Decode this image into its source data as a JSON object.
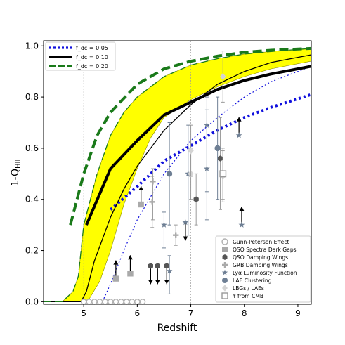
{
  "chart_data": {
    "type": "line",
    "xlabel": "Redshift",
    "ylabel": "1-Q_HII",
    "xlim": [
      4.25,
      9.25
    ],
    "ylim": [
      -0.01,
      1.02
    ],
    "xticks": [
      5,
      6,
      7,
      8,
      9
    ],
    "yticks": [
      0.0,
      0.2,
      0.4,
      0.6,
      0.8,
      1.0
    ],
    "xtick_labels": [
      "5",
      "6",
      "7",
      "8",
      "9"
    ],
    "ytick_labels": [
      "0.0",
      "0.2",
      "0.4",
      "0.6",
      "0.8",
      "1.0"
    ],
    "vlines": [
      5,
      7
    ],
    "grid": false,
    "legend_main": {
      "placement": "top-left",
      "entries": [
        {
          "key": "f005",
          "label": "f_dc = 0.05",
          "color": "#1010dd",
          "style": "dotted"
        },
        {
          "key": "f010",
          "label": "f_dc = 0.10",
          "color": "#000000",
          "style": "solid"
        },
        {
          "key": "f020",
          "label": "f_dc = 0.20",
          "color": "#1a7a1a",
          "style": "dashed"
        }
      ]
    },
    "band": {
      "color": "#ffff00",
      "edge_color": "#8a8a00",
      "upper": [
        [
          4.25,
          0
        ],
        [
          4.6,
          0
        ],
        [
          4.8,
          0.04
        ],
        [
          4.9,
          0.1
        ],
        [
          5,
          0.3
        ],
        [
          5.25,
          0.5
        ],
        [
          5.5,
          0.65
        ],
        [
          5.75,
          0.74
        ],
        [
          6,
          0.8
        ],
        [
          6.5,
          0.88
        ],
        [
          7,
          0.925
        ],
        [
          7.5,
          0.95
        ],
        [
          8,
          0.968
        ],
        [
          8.5,
          0.978
        ],
        [
          9.25,
          0.99
        ]
      ],
      "lower": [
        [
          9.25,
          0.94
        ],
        [
          8.5,
          0.91
        ],
        [
          8,
          0.88
        ],
        [
          7.5,
          0.84
        ],
        [
          7,
          0.79
        ],
        [
          6.5,
          0.72
        ],
        [
          6.25,
          0.64
        ],
        [
          6,
          0.52
        ],
        [
          5.75,
          0.38
        ],
        [
          5.5,
          0.2
        ],
        [
          5.3,
          0.08
        ],
        [
          5.1,
          0.01
        ],
        [
          5,
          0
        ],
        [
          4.25,
          0
        ]
      ]
    },
    "series": [
      {
        "key": "f005",
        "color": "#1010dd",
        "style": "dotted",
        "width": 4,
        "points": [
          [
            5.5,
            0.36
          ],
          [
            6,
            0.45
          ],
          [
            6.5,
            0.55
          ],
          [
            7,
            0.61
          ],
          [
            7.5,
            0.67
          ],
          [
            8,
            0.72
          ],
          [
            8.5,
            0.76
          ],
          [
            9.25,
            0.81
          ]
        ]
      },
      {
        "key": "f005_thin",
        "color": "#1010dd",
        "style": "dotted",
        "width": 1.2,
        "points": [
          [
            5.35,
            0
          ],
          [
            5.5,
            0.07
          ],
          [
            5.75,
            0.2
          ],
          [
            6,
            0.32
          ],
          [
            6.5,
            0.5
          ],
          [
            7,
            0.63
          ],
          [
            7.5,
            0.72
          ],
          [
            8,
            0.8
          ],
          [
            8.5,
            0.86
          ],
          [
            9.25,
            0.92
          ]
        ]
      },
      {
        "key": "f010",
        "color": "#000000",
        "style": "solid",
        "width": 4,
        "points": [
          [
            5.05,
            0.3
          ],
          [
            5.5,
            0.52
          ],
          [
            6,
            0.63
          ],
          [
            6.5,
            0.73
          ],
          [
            7,
            0.78
          ],
          [
            7.5,
            0.83
          ],
          [
            8,
            0.865
          ],
          [
            8.5,
            0.89
          ],
          [
            9.25,
            0.92
          ]
        ]
      },
      {
        "key": "f010_thin",
        "color": "#000000",
        "style": "solid",
        "width": 1.3,
        "points": [
          [
            4.25,
            0
          ],
          [
            4.95,
            0
          ],
          [
            5.05,
            0.04
          ],
          [
            5.2,
            0.16
          ],
          [
            5.5,
            0.33
          ],
          [
            5.75,
            0.44
          ],
          [
            6,
            0.53
          ],
          [
            6.5,
            0.67
          ],
          [
            7,
            0.77
          ],
          [
            7.5,
            0.85
          ],
          [
            8,
            0.9
          ],
          [
            8.5,
            0.935
          ],
          [
            9.25,
            0.965
          ]
        ]
      },
      {
        "key": "f020",
        "color": "#1a7a1a",
        "style": "dashed",
        "width": 4,
        "points": [
          [
            4.75,
            0.3
          ],
          [
            5,
            0.5
          ],
          [
            5.25,
            0.65
          ],
          [
            5.5,
            0.74
          ],
          [
            6,
            0.85
          ],
          [
            6.5,
            0.91
          ],
          [
            7,
            0.94
          ],
          [
            7.5,
            0.96
          ],
          [
            8,
            0.975
          ],
          [
            8.5,
            0.983
          ],
          [
            9.25,
            0.99
          ]
        ]
      },
      {
        "key": "f020_thin",
        "color": "#1a7a1a",
        "style": "dashed",
        "width": 1.3,
        "points": [
          [
            4.25,
            0
          ],
          [
            4.6,
            0
          ],
          [
            4.8,
            0.04
          ],
          [
            4.9,
            0.1
          ],
          [
            5,
            0.3
          ],
          [
            5.25,
            0.5
          ],
          [
            5.5,
            0.65
          ],
          [
            5.75,
            0.74
          ],
          [
            6,
            0.8
          ],
          [
            6.5,
            0.88
          ],
          [
            7,
            0.925
          ],
          [
            7.5,
            0.95
          ],
          [
            8,
            0.968
          ],
          [
            8.5,
            0.978
          ],
          [
            9.25,
            0.99
          ]
        ]
      }
    ],
    "legend_obs": {
      "placement": "bottom-right",
      "entries": [
        {
          "key": "gp",
          "label": "Gunn-Peterson Effect",
          "marker": "circle-open",
          "color": "#aaaaaa"
        },
        {
          "key": "qdg",
          "label": "QSO Spectra Dark Gaps",
          "marker": "square",
          "color": "#aaaaaa"
        },
        {
          "key": "qdw",
          "label": "QSO Damping Wings",
          "marker": "hexagon",
          "color": "#555555"
        },
        {
          "key": "grb",
          "label": "GRB Damping Wings",
          "marker": "plus",
          "color": "#aaaaaa"
        },
        {
          "key": "lya",
          "label": "Lyα Luminosity Function",
          "marker": "star",
          "color": "#6e7f94"
        },
        {
          "key": "lae",
          "label": "LAE Clustering",
          "marker": "circle",
          "color": "#6e7f94"
        },
        {
          "key": "lbg",
          "label": "LBGs / LAEs",
          "marker": "diamond",
          "color": "#d4d4d4"
        },
        {
          "key": "cmb",
          "label": "τ from CMB",
          "marker": "square-open",
          "color": "#999999"
        }
      ]
    },
    "observations": [
      {
        "type": "circle-open",
        "x": 5.0,
        "y": 0.0
      },
      {
        "type": "circle-open",
        "x": 5.1,
        "y": 0.0
      },
      {
        "type": "circle-open",
        "x": 5.2,
        "y": 0.0
      },
      {
        "type": "circle-open",
        "x": 5.3,
        "y": 0.0
      },
      {
        "type": "circle-open",
        "x": 5.4,
        "y": 0.0
      },
      {
        "type": "circle-open",
        "x": 5.5,
        "y": 0.0
      },
      {
        "type": "circle-open",
        "x": 5.6,
        "y": 0.0
      },
      {
        "type": "circle-open",
        "x": 5.7,
        "y": 0.0
      },
      {
        "type": "circle-open",
        "x": 5.8,
        "y": 0.0
      },
      {
        "type": "circle-open",
        "x": 5.9,
        "y": 0.0
      },
      {
        "type": "circle-open",
        "x": 6.0,
        "y": 0.0
      },
      {
        "type": "circle-open",
        "x": 6.1,
        "y": 0.0
      },
      {
        "type": "square",
        "x": 5.6,
        "y": 0.09,
        "limit": "up"
      },
      {
        "type": "square",
        "x": 5.87,
        "y": 0.11,
        "limit": "up"
      },
      {
        "type": "square",
        "x": 6.07,
        "y": 0.38,
        "limit": "up"
      },
      {
        "type": "hexagon",
        "x": 6.25,
        "y": 0.14,
        "limit": "down"
      },
      {
        "type": "hexagon",
        "x": 6.38,
        "y": 0.14,
        "limit": "down"
      },
      {
        "type": "hexagon",
        "x": 6.55,
        "y": 0.14,
        "limit": "down"
      },
      {
        "type": "hexagon",
        "x": 7.1,
        "y": 0.4,
        "yerr": [
          0.1,
          0.1
        ]
      },
      {
        "type": "hexagon",
        "x": 7.55,
        "y": 0.56,
        "yerr": [
          0.2,
          0.16
        ]
      },
      {
        "type": "plus",
        "x": 6.29,
        "y": 0.47,
        "yerr": [
          0.15,
          0.05
        ]
      },
      {
        "type": "plus",
        "x": 6.72,
        "y": 0.26,
        "yerr": [
          0.04,
          0.04
        ]
      },
      {
        "type": "plus",
        "x": 6.28,
        "y": 0.39,
        "yerr": [
          0.1,
          0.1
        ]
      },
      {
        "type": "star",
        "x": 6.5,
        "y": 0.3,
        "yerr": [
          0.09,
          0.05
        ]
      },
      {
        "type": "star",
        "x": 6.6,
        "y": 0.12,
        "yerr": [
          0.09,
          0.06
        ]
      },
      {
        "type": "star",
        "x": 6.9,
        "y": 0.31,
        "limit": "down"
      },
      {
        "type": "star",
        "x": 6.95,
        "y": 0.5,
        "yerr": [
          0.24,
          0.19
        ]
      },
      {
        "type": "star",
        "x": 7.3,
        "y": 0.52,
        "yerr": [
          0.2,
          0.23
        ]
      },
      {
        "type": "star",
        "x": 7.3,
        "y": 0.69,
        "yerr": [
          0.26,
          0.11
        ]
      },
      {
        "type": "star",
        "x": 7.9,
        "y": 0.65,
        "limit": "up"
      },
      {
        "type": "star",
        "x": 7.95,
        "y": 0.3,
        "limit": "up"
      },
      {
        "type": "circle",
        "x": 6.6,
        "y": 0.5,
        "yerr": [
          0.2,
          0.2
        ]
      },
      {
        "type": "circle",
        "x": 7.5,
        "y": 0.6,
        "yerr": [
          0.2,
          0.2
        ]
      },
      {
        "type": "diamond",
        "x": 7.0,
        "y": 0.5,
        "yerr": [
          0.1,
          0.1
        ]
      },
      {
        "type": "diamond",
        "x": 7.0,
        "y": 0.59,
        "yerr": [
          0.1,
          0.1
        ]
      },
      {
        "type": "diamond",
        "x": 7.6,
        "y": 0.88,
        "yerr": [
          0.1,
          0.1
        ]
      },
      {
        "type": "diamond",
        "x": 7.6,
        "y": 0.49,
        "yerr": [
          0.1,
          0.1
        ]
      },
      {
        "type": "square-open",
        "x": 7.6,
        "y": 0.5,
        "yerr": [
          0.1,
          0.1
        ]
      }
    ]
  }
}
